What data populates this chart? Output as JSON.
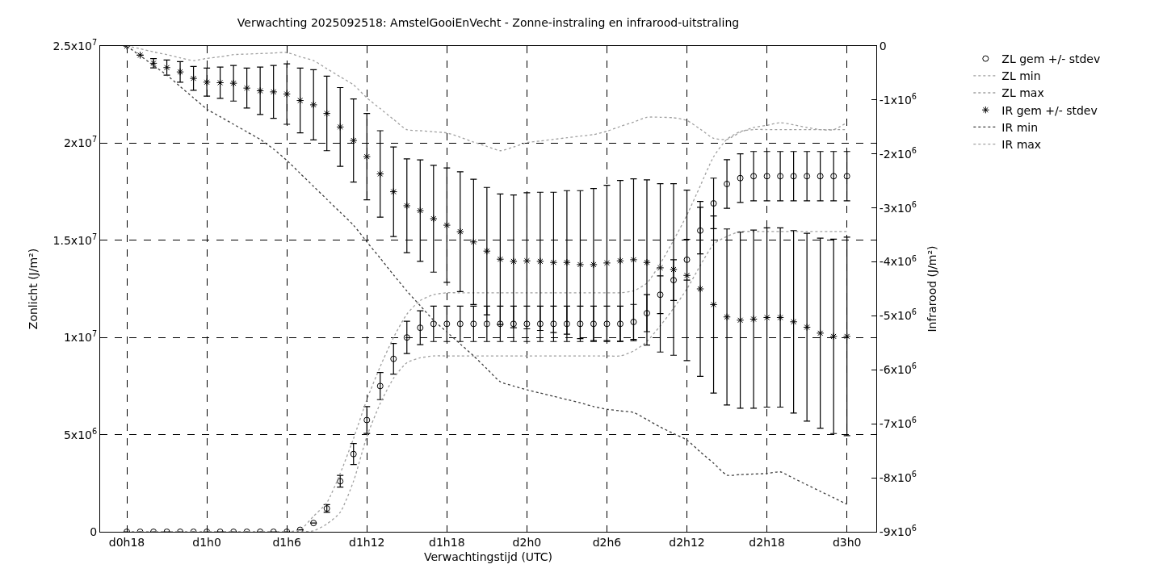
{
  "chart_data": {
    "type": "scatter",
    "title": "Verwachting 2025092518: AmstelGooiEnVecht - Zonne-instraling en infrarood-uitstraling",
    "xlabel": "Verwachtingstijd (UTC)",
    "ylabel": "Zonlicht (J/m²)",
    "y2label": "Infrarood (J/m²)",
    "categories": [
      "d0h18",
      null,
      null,
      null,
      null,
      null,
      "d1h0",
      null,
      null,
      null,
      null,
      null,
      "d1h6",
      null,
      null,
      null,
      null,
      null,
      "d1h12",
      null,
      null,
      null,
      null,
      null,
      "d1h18",
      null,
      null,
      null,
      null,
      null,
      "d2h0",
      null,
      null,
      null,
      null,
      null,
      "d2h6",
      null,
      null,
      null,
      null,
      null,
      "d2h12",
      null,
      null,
      null,
      null,
      null,
      "d2h18",
      null,
      null,
      null,
      null,
      null,
      "d3h0"
    ],
    "ylim": [
      0,
      25000000.0
    ],
    "yticks": [
      0,
      {
        "value": 5000000.0,
        "label": "5x10$^{6}$"
      },
      {
        "value": 10000000.0,
        "label": "1x10$^{7}$"
      },
      {
        "value": 15000000.0,
        "label": "1.5x10$^{7}$"
      },
      {
        "value": 20000000.0,
        "label": "2x10$^{7}$"
      },
      {
        "value": 25000000.0,
        "label": "2.5x10$^{7}$"
      }
    ],
    "y2lim": [
      -9000000.0,
      0
    ],
    "y2ticks": [
      0,
      {
        "value": -1000000.0,
        "label": "-1x10$^{6}$"
      },
      {
        "value": -2000000.0,
        "label": "-2x10$^{6}$"
      },
      {
        "value": -3000000.0,
        "label": "-3x10$^{6}$"
      },
      {
        "value": -4000000.0,
        "label": "-4x10$^{6}$"
      },
      {
        "value": -5000000.0,
        "label": "-5x10$^{6}$"
      },
      {
        "value": -6000000.0,
        "label": "-6x10$^{6}$"
      },
      {
        "value": -7000000.0,
        "label": "-7x10$^{6}$"
      },
      {
        "value": -8000000.0,
        "label": "-8x10$^{6}$"
      },
      {
        "value": -9000000.0,
        "label": "-9x10$^{6}$"
      }
    ],
    "grid": true,
    "legend": "top right",
    "series": [
      {
        "name": "ZL gem +/- stdev",
        "marker": "circle",
        "color": "#000000",
        "values": [
          0,
          0,
          0,
          0,
          0,
          0,
          0,
          0,
          0,
          0,
          0,
          0,
          0,
          100000.0,
          450000.0,
          1200000.0,
          2600000.0,
          4000000.0,
          5750000.0,
          7500000.0,
          8900000.0,
          10000000.0,
          10500000.0,
          10700000.0,
          10700000.0,
          10700000.0,
          10700000.0,
          10700000.0,
          10700000.0,
          10700000.0,
          10700000.0,
          10700000.0,
          10700000.0,
          10700000.0,
          10700000.0,
          10700000.0,
          10700000.0,
          10700000.0,
          10800000.0,
          11250000.0,
          12200000.0,
          12950000.0,
          14000000.0,
          15500000.0,
          16900000.0,
          17900000.0,
          18200000.0,
          18300000.0,
          18300000.0,
          18300000.0,
          18300000.0,
          18300000.0,
          18300000.0,
          18300000.0,
          18300000.0
        ],
        "errors": [
          null,
          null,
          null,
          null,
          null,
          null,
          null,
          null,
          null,
          null,
          null,
          null,
          null,
          null,
          null,
          200000.0,
          300000.0,
          540000.0,
          690000.0,
          700000.0,
          790000.0,
          830000.0,
          870000.0,
          910000.0,
          910000.0,
          910000.0,
          910000.0,
          910000.0,
          910000.0,
          910000.0,
          910000.0,
          910000.0,
          910000.0,
          910000.0,
          910000.0,
          910000.0,
          910000.0,
          910000.0,
          900000.0,
          950000.0,
          970000.0,
          1050000.0,
          1050000.0,
          1200000.0,
          1300000.0,
          1250000.0,
          1250000.0,
          1270000.0,
          1270000.0,
          1270000.0,
          1270000.0,
          1270000.0,
          1270000.0,
          1270000.0,
          1270000.0
        ]
      },
      {
        "name": "ZL min",
        "type": "line",
        "line_style": "dotted",
        "marker": "none",
        "color": "#a0a0a0",
        "values": [
          0,
          0,
          0,
          0,
          0,
          0,
          0,
          0,
          0,
          0,
          0,
          0,
          0,
          0,
          50000.0,
          400000.0,
          1000000.0,
          2600000.0,
          4900000.0,
          6600000.0,
          7900000.0,
          8700000.0,
          8950000.0,
          9050000.0,
          9050000.0,
          9050000.0,
          9050000.0,
          9050000.0,
          9050000.0,
          9050000.0,
          9050000.0,
          9050000.0,
          9050000.0,
          9050000.0,
          9050000.0,
          9050000.0,
          9050000.0,
          9050000.0,
          9300000.0,
          9800000.0,
          10600000.0,
          11500000.0,
          12500000.0,
          13700000.0,
          14800000.0,
          15200000.0,
          15450000.0,
          15450000.0,
          15450000.0,
          15450000.0,
          15450000.0,
          15450000.0,
          15450000.0,
          15450000.0,
          15450000.0
        ]
      },
      {
        "name": "ZL max",
        "type": "line",
        "line_style": "dotted",
        "marker": "none",
        "color": "#a0a0a0",
        "values": [
          0,
          0,
          0,
          0,
          0,
          0,
          0,
          0,
          0,
          0,
          0,
          0,
          0,
          100000.0,
          800000.0,
          1500000.0,
          3000000.0,
          4800000.0,
          6800000.0,
          8500000.0,
          10000000.0,
          11200000.0,
          11900000.0,
          12200000.0,
          12300000.0,
          12300000.0,
          12300000.0,
          12300000.0,
          12300000.0,
          12300000.0,
          12300000.0,
          12300000.0,
          12300000.0,
          12300000.0,
          12300000.0,
          12300000.0,
          12300000.0,
          12300000.0,
          12400000.0,
          12800000.0,
          13800000.0,
          15000000.0,
          16300000.0,
          17800000.0,
          19300000.0,
          20200000.0,
          20600000.0,
          20700000.0,
          20700000.0,
          20700000.0,
          20700000.0,
          20700000.0,
          20700000.0,
          20700000.0,
          20700000.0
        ]
      },
      {
        "name": "IR gem +/- stdev",
        "axis": "y2",
        "marker": "cross",
        "color": "#000000",
        "values": [
          0,
          -170000.0,
          -320000.0,
          -400000.0,
          -480000.0,
          -600000.0,
          -670000.0,
          -680000.0,
          -690000.0,
          -780000.0,
          -830000.0,
          -850000.0,
          -890000.0,
          -1010000.0,
          -1090000.0,
          -1250000.0,
          -1500000.0,
          -1750000.0,
          -2050000.0,
          -2370000.0,
          -2700000.0,
          -2960000.0,
          -3050000.0,
          -3200000.0,
          -3320000.0,
          -3440000.0,
          -3630000.0,
          -3800000.0,
          -3950000.0,
          -3990000.0,
          -3980000.0,
          -3990000.0,
          -4010000.0,
          -4010000.0,
          -4050000.0,
          -4050000.0,
          -4020000.0,
          -3980000.0,
          -3960000.0,
          -4010000.0,
          -4110000.0,
          -4140000.0,
          -4250000.0,
          -4500000.0,
          -4790000.0,
          -5020000.0,
          -5080000.0,
          -5060000.0,
          -5030000.0,
          -5030000.0,
          -5110000.0,
          -5210000.0,
          -5320000.0,
          -5380000.0,
          -5380000.0
        ],
        "errors": [
          null,
          null,
          87000.0,
          140000.0,
          190000.0,
          220000.0,
          260000.0,
          290000.0,
          330000.0,
          370000.0,
          440000.0,
          490000.0,
          560000.0,
          600000.0,
          650000.0,
          690000.0,
          730000.0,
          770000.0,
          800000.0,
          800000.0,
          830000.0,
          870000.0,
          940000.0,
          990000.0,
          1060000.0,
          1110000.0,
          1160000.0,
          1180000.0,
          1210000.0,
          1230000.0,
          1260000.0,
          1280000.0,
          1300000.0,
          1330000.0,
          1370000.0,
          1410000.0,
          1440000.0,
          1490000.0,
          1500000.0,
          1530000.0,
          1560000.0,
          1590000.0,
          1580000.0,
          1620000.0,
          1640000.0,
          1630000.0,
          1630000.0,
          1650000.0,
          1660000.0,
          1660000.0,
          1690000.0,
          1740000.0,
          1760000.0,
          1800000.0,
          1840000.0
        ]
      },
      {
        "name": "IR min",
        "type": "line",
        "axis": "y2",
        "line_style": "dotted",
        "marker": "none",
        "color": "#404040",
        "values": [
          0,
          -180000.0,
          -360000.0,
          -540000.0,
          -750000.0,
          -960000.0,
          -1170000.0,
          -1310000.0,
          -1450000.0,
          -1590000.0,
          -1730000.0,
          -1910000.0,
          -2120000.0,
          -2360000.0,
          -2600000.0,
          -2840000.0,
          -3080000.0,
          -3320000.0,
          -3630000.0,
          -3930000.0,
          -4240000.0,
          -4540000.0,
          -4810000.0,
          -5080000.0,
          -5300000.0,
          -5520000.0,
          -5740000.0,
          -5980000.0,
          -6220000.0,
          -6300000.0,
          -6370000.0,
          -6430000.0,
          -6490000.0,
          -6550000.0,
          -6610000.0,
          -6680000.0,
          -6730000.0,
          -6760000.0,
          -6790000.0,
          -6920000.0,
          -7060000.0,
          -7180000.0,
          -7300000.0,
          -7520000.0,
          -7730000.0,
          -7950000.0,
          -7940000.0,
          -7930000.0,
          -7920000.0,
          -7890000.0,
          -8010000.0,
          -8130000.0,
          -8250000.0,
          -8370000.0,
          -8490000.0
        ]
      },
      {
        "name": "IR max",
        "type": "line",
        "axis": "y2",
        "line_style": "dotted",
        "marker": "none",
        "color": "#a0a0a0",
        "values": [
          0,
          -50000.0,
          -110000.0,
          -160000.0,
          -220000.0,
          -270000.0,
          -230000.0,
          -200000.0,
          -160000.0,
          -150000.0,
          -140000.0,
          -130000.0,
          -120000.0,
          -200000.0,
          -270000.0,
          -420000.0,
          -570000.0,
          -720000.0,
          -960000.0,
          -1160000.0,
          -1360000.0,
          -1550000.0,
          -1570000.0,
          -1590000.0,
          -1610000.0,
          -1690000.0,
          -1780000.0,
          -1860000.0,
          -1940000.0,
          -1870000.0,
          -1790000.0,
          -1760000.0,
          -1730000.0,
          -1700000.0,
          -1670000.0,
          -1640000.0,
          -1580000.0,
          -1490000.0,
          -1410000.0,
          -1320000.0,
          -1320000.0,
          -1330000.0,
          -1380000.0,
          -1540000.0,
          -1710000.0,
          -1730000.0,
          -1600000.0,
          -1510000.0,
          -1470000.0,
          -1420000.0,
          -1460000.0,
          -1510000.0,
          -1550000.0,
          -1550000.0,
          -1420000.0
        ]
      }
    ]
  }
}
